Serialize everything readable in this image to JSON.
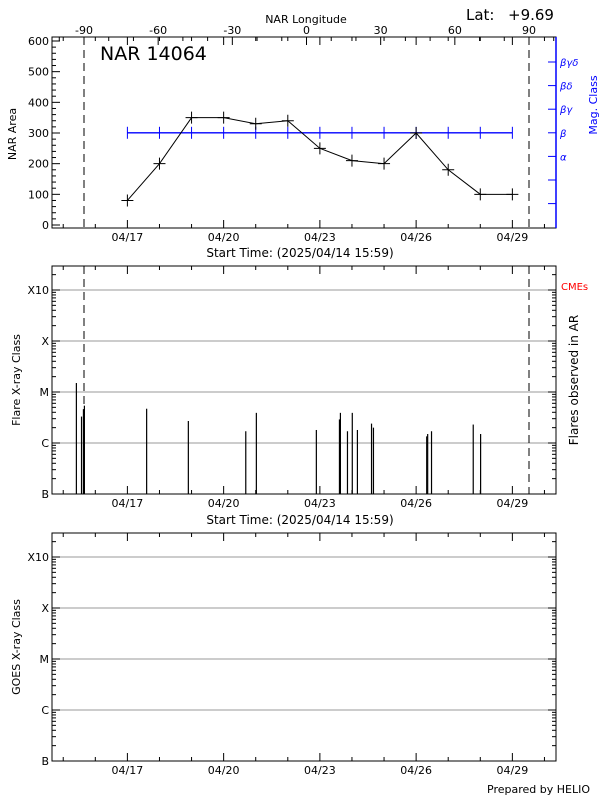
{
  "header": {
    "lat_label": "Lat:",
    "lat_value": "+9.69"
  },
  "footer": {
    "credit": "Prepared by HELIO"
  },
  "chart_data": [
    {
      "type": "line",
      "title": "NAR 14064",
      "top_axis_label": "NAR Longitude",
      "top_ticks": [
        -90,
        -60,
        -30,
        0,
        30,
        60,
        90
      ],
      "xlabel": "Start Time: (2025/04/14 15:59)",
      "x_ticks": [
        "04/17",
        "04/20",
        "04/23",
        "04/26",
        "04/29"
      ],
      "x_unit": "days since 04/17 00:00",
      "xlim": [
        -2.35,
        13.36
      ],
      "ylabel": "NAR Area",
      "ylim": [
        0,
        600
      ],
      "y_ticks": [
        0,
        100,
        200,
        300,
        400,
        500,
        600
      ],
      "limb_longitudes": [
        -90,
        90
      ],
      "series": [
        {
          "name": "NAR Area",
          "color": "#000000",
          "x": [
            0,
            1,
            2,
            3,
            4,
            5,
            6,
            7,
            8,
            9,
            10,
            11,
            12
          ],
          "values": [
            80,
            200,
            350,
            350,
            330,
            340,
            250,
            210,
            200,
            300,
            180,
            100,
            100
          ]
        },
        {
          "name": "Mag. Class",
          "color": "#0000ff",
          "x": [
            0,
            1,
            2,
            3,
            4,
            5,
            6,
            7,
            8,
            9,
            10,
            11,
            12
          ],
          "values": [
            "β",
            "β",
            "β",
            "β",
            "β",
            "β",
            "β",
            "β",
            "β",
            "β",
            "β",
            "β",
            "β"
          ]
        }
      ],
      "y2label": "Mag. Class",
      "y2_ticks": [
        "βγδ",
        "βδ",
        "βγ",
        "β",
        "α",
        "",
        ""
      ]
    },
    {
      "type": "bar",
      "xlabel": "Start Time: (2025/04/14 15:59)",
      "x_ticks": [
        "04/17",
        "04/20",
        "04/23",
        "04/26",
        "04/29"
      ],
      "ylabel": "Flare X-ray Class",
      "y2label": "Flares observed in AR",
      "cme_label": "CMEs",
      "cme_color": "#ff0000",
      "y_ticks": [
        "B",
        "C",
        "M",
        "X",
        "X10"
      ],
      "flares": [
        {
          "day": -1.59,
          "class": "M1.5"
        },
        {
          "day": -1.43,
          "class": "C3.3"
        },
        {
          "day": -1.37,
          "class": "C4.6"
        },
        {
          "day": -1.34,
          "class": "C5.4"
        },
        {
          "day": 0.6,
          "class": "C4.7"
        },
        {
          "day": 1.9,
          "class": "C2.7"
        },
        {
          "day": 3.69,
          "class": "C1.7"
        },
        {
          "day": 4.02,
          "class": "C3.9"
        },
        {
          "day": 5.89,
          "class": "C1.8"
        },
        {
          "day": 6.61,
          "class": "C2.9"
        },
        {
          "day": 6.64,
          "class": "C3.9"
        },
        {
          "day": 6.86,
          "class": "C1.7"
        },
        {
          "day": 7.01,
          "class": "C3.9"
        },
        {
          "day": 7.17,
          "class": "C1.8"
        },
        {
          "day": 7.61,
          "class": "C2.4"
        },
        {
          "day": 7.67,
          "class": "C2.0"
        },
        {
          "day": 9.33,
          "class": "C1.35"
        },
        {
          "day": 9.36,
          "class": "C1.5"
        },
        {
          "day": 9.48,
          "class": "C1.7"
        },
        {
          "day": 10.78,
          "class": "C2.3"
        },
        {
          "day": 11.01,
          "class": "C1.5"
        }
      ]
    },
    {
      "type": "line",
      "x_ticks": [
        "04/17",
        "04/20",
        "04/23",
        "04/26",
        "04/29"
      ],
      "ylabel": "GOES X-ray Class",
      "y_ticks": [
        "B",
        "C",
        "M",
        "X",
        "X10"
      ],
      "series": []
    }
  ]
}
